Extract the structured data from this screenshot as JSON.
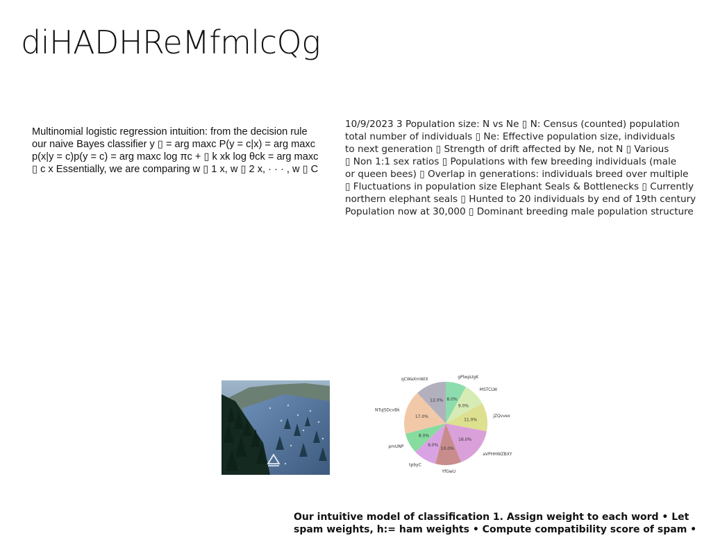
{
  "title": "diHADHReMfmlcQg",
  "left_block": {
    "lines": [
      "Multinomial logistic regression intuition: from the decision rule",
      "our naive Bayes classifier y ▯ = arg maxc P(y = c|x) = arg maxc",
      "p(x|y = c)p(y = c) = arg maxc log πc + ▯ k xk log θck = arg maxc",
      "▯ c x Essentially, we are comparing w ▯ 1 x, w ▯ 2 x, · · · , w ▯ C"
    ]
  },
  "right_block": {
    "lines": [
      "10/9/2023 3 Population size: N vs Ne ▯ N: Census (counted) population",
      "total number of individuals ▯ Ne: Effective population size, individuals",
      "to next generation ▯ Strength of drift affected by Ne, not N ▯ Various",
      "▯ Non 1:1 sex ratios ▯ Populations with few breeding individuals (male",
      "or queen bees) ▯ Overlap in generations: individuals breed over multiple",
      "▯ Fluctuations in population size Elephant Seals & Bottlenecks ▯ Currently",
      "northern elephant seals ▯ Hunted to 20 individuals by end of 19th century",
      "Population now at 30,000 ▯ Dominant breeding male population structure"
    ]
  },
  "photo": {
    "icon": "mountain-forest-photo"
  },
  "chart_data": {
    "type": "pie",
    "title": "",
    "start_angle_deg": 90,
    "direction": "counterclockwise",
    "slices": [
      {
        "label": "qCWaXmWiX",
        "value": 12.0,
        "pct_label": "12.0%",
        "color": "#b3b0bd"
      },
      {
        "label": "NTuJSDcvBk",
        "value": 17.0,
        "pct_label": "17.0%",
        "color": "#f2c9a8"
      },
      {
        "label": "pmUNP",
        "value": 8.0,
        "pct_label": "8.0%",
        "color": "#86dc9e"
      },
      {
        "label": "tpbyC",
        "value": 9.0,
        "pct_label": "9.0%",
        "color": "#d9a3e3"
      },
      {
        "label": "YfGwU",
        "value": 10.0,
        "pct_label": "10.0%",
        "color": "#c98c8c"
      },
      {
        "label": "aVPHHWZBXY",
        "value": 16.0,
        "pct_label": "16.0%",
        "color": "#d9a0d9"
      },
      {
        "label": "jZQvvex",
        "value": 11.0,
        "pct_label": "11.0%",
        "color": "#dde08f"
      },
      {
        "label": "MSTCLW",
        "value": 9.0,
        "pct_label": "9.0%",
        "color": "#d6ecb4"
      },
      {
        "label": "gPlwpUgK",
        "value": 8.0,
        "pct_label": "8.0%",
        "color": "#8ddcad"
      }
    ]
  },
  "bottom_block": {
    "lines": [
      "Our intuitive model of classification 1. Assign weight to each word • Let",
      "spam weights, h:= ham weights • Compute compatibility score of spam •"
    ]
  }
}
